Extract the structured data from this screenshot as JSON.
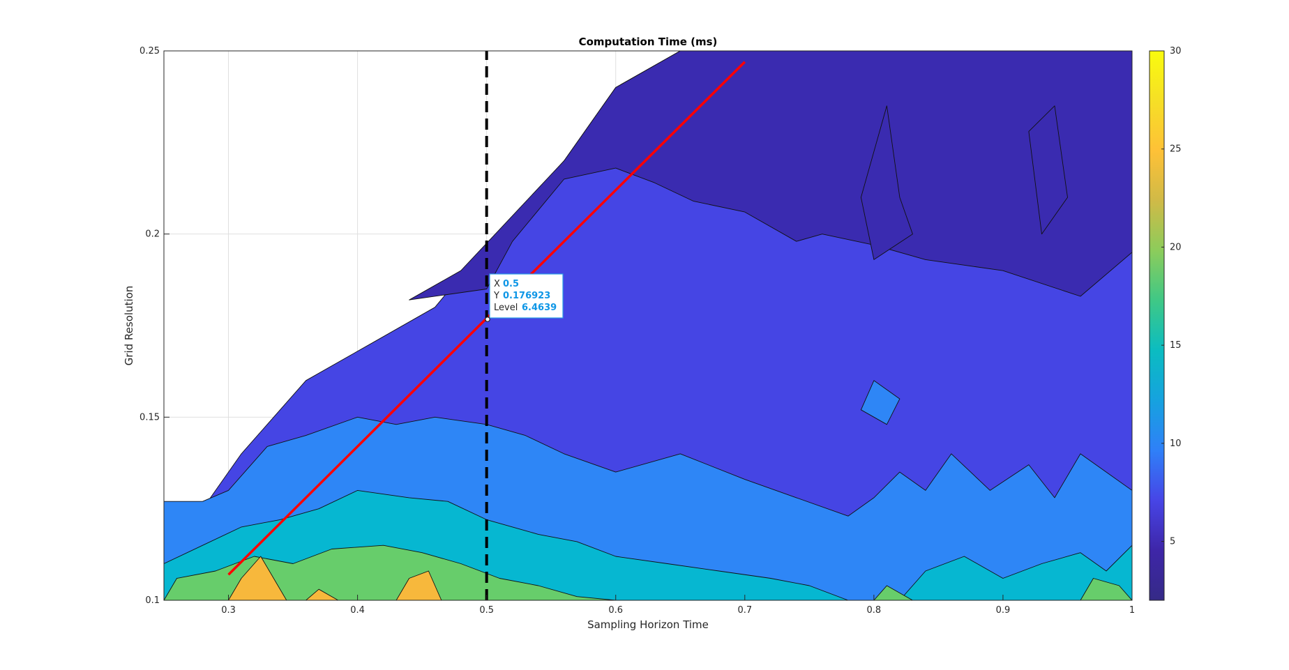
{
  "chart_data": {
    "type": "heatmap",
    "subtype": "filled-contour",
    "title": "Computation Time (ms)",
    "xlabel": "Sampling Horizon Time",
    "ylabel": "Grid Resolution",
    "xlim": [
      0.25,
      1
    ],
    "ylim": [
      0.1,
      0.25
    ],
    "xticks": [
      0.3,
      0.4,
      0.5,
      0.6,
      0.7,
      0.8,
      0.9,
      1
    ],
    "xtick_labels": [
      "0.3",
      "0.4",
      "0.5",
      "0.6",
      "0.7",
      "0.8",
      "0.9",
      "1"
    ],
    "yticks": [
      0.1,
      0.15,
      0.2,
      0.25
    ],
    "ytick_labels": [
      "0.1",
      "0.15",
      "0.2",
      "0.25"
    ],
    "grid": true,
    "colormap": "parula",
    "colorbar": {
      "position": "right",
      "clim": [
        2,
        30
      ],
      "ticks": [
        5,
        10,
        15,
        20,
        25,
        30
      ],
      "tick_labels": [
        "5",
        "10",
        "15",
        "20",
        "25",
        "30"
      ],
      "stops": [
        "#352a87",
        "#3e26a8",
        "#4745e6",
        "#2f80f8",
        "#16a2df",
        "#0bbcc1",
        "#3fc886",
        "#8ccc5b",
        "#d0ba47",
        "#fec137",
        "#f6df26",
        "#f9fb0e"
      ]
    },
    "levels": [
      {
        "min": 2,
        "max": 5,
        "color": "#3a2bb0"
      },
      {
        "min": 5,
        "max": 8,
        "color": "#4545e4"
      },
      {
        "min": 8,
        "max": 11,
        "color": "#2e86f6"
      },
      {
        "min": 11,
        "max": 15,
        "color": "#06b7d1"
      },
      {
        "min": 15,
        "max": 20,
        "color": "#67cd6b"
      },
      {
        "min": 20,
        "max": 25,
        "color": "#f7b83c"
      }
    ],
    "regions": [
      {
        "level": 6.5,
        "points": [
          [
            0.28,
            0.1
          ],
          [
            0.28,
            0.125
          ],
          [
            0.31,
            0.14
          ],
          [
            0.36,
            0.16
          ],
          [
            0.41,
            0.17
          ],
          [
            0.46,
            0.18
          ],
          [
            0.5,
            0.197
          ],
          [
            0.53,
            0.208
          ],
          [
            0.56,
            0.22
          ],
          [
            0.6,
            0.24
          ],
          [
            0.65,
            0.25
          ],
          [
            1,
            0.25
          ],
          [
            1,
            0.1
          ]
        ]
      },
      {
        "level": 3.5,
        "points": [
          [
            0.44,
            0.182
          ],
          [
            0.5,
            0.185
          ],
          [
            0.52,
            0.198
          ],
          [
            0.56,
            0.215
          ],
          [
            0.6,
            0.218
          ],
          [
            0.63,
            0.214
          ],
          [
            0.66,
            0.209
          ],
          [
            0.7,
            0.206
          ],
          [
            0.74,
            0.198
          ],
          [
            0.76,
            0.2
          ],
          [
            0.8,
            0.197
          ],
          [
            0.84,
            0.193
          ],
          [
            0.9,
            0.19
          ],
          [
            0.96,
            0.183
          ],
          [
            1,
            0.195
          ],
          [
            1,
            0.25
          ],
          [
            0.65,
            0.25
          ],
          [
            0.6,
            0.24
          ],
          [
            0.56,
            0.22
          ],
          [
            0.52,
            0.205
          ],
          [
            0.48,
            0.19
          ]
        ]
      },
      {
        "level": 3.5,
        "points": [
          [
            0.81,
            0.235
          ],
          [
            0.82,
            0.21
          ],
          [
            0.83,
            0.2
          ],
          [
            0.8,
            0.193
          ],
          [
            0.79,
            0.21
          ]
        ]
      },
      {
        "level": 3.5,
        "points": [
          [
            0.92,
            0.228
          ],
          [
            0.93,
            0.2
          ],
          [
            0.95,
            0.21
          ],
          [
            0.94,
            0.235
          ]
        ]
      },
      {
        "level": 9.5,
        "points": [
          [
            0.25,
            0.1
          ],
          [
            0.25,
            0.127
          ],
          [
            0.28,
            0.127
          ],
          [
            0.3,
            0.13
          ],
          [
            0.33,
            0.142
          ],
          [
            0.36,
            0.145
          ],
          [
            0.4,
            0.15
          ],
          [
            0.43,
            0.148
          ],
          [
            0.46,
            0.15
          ],
          [
            0.5,
            0.148
          ],
          [
            0.53,
            0.145
          ],
          [
            0.56,
            0.14
          ],
          [
            0.6,
            0.135
          ],
          [
            0.65,
            0.14
          ],
          [
            0.7,
            0.133
          ],
          [
            0.74,
            0.128
          ],
          [
            0.78,
            0.123
          ],
          [
            0.8,
            0.128
          ],
          [
            0.82,
            0.135
          ],
          [
            0.84,
            0.13
          ],
          [
            0.86,
            0.14
          ],
          [
            0.89,
            0.13
          ],
          [
            0.92,
            0.137
          ],
          [
            0.94,
            0.128
          ],
          [
            0.96,
            0.14
          ],
          [
            0.98,
            0.135
          ],
          [
            1,
            0.13
          ],
          [
            1,
            0.1
          ]
        ]
      },
      {
        "level": 9.5,
        "points": [
          [
            0.8,
            0.16
          ],
          [
            0.82,
            0.155
          ],
          [
            0.81,
            0.148
          ],
          [
            0.79,
            0.152
          ]
        ]
      },
      {
        "level": 13,
        "points": [
          [
            0.25,
            0.1
          ],
          [
            0.25,
            0.11
          ],
          [
            0.28,
            0.115
          ],
          [
            0.31,
            0.12
          ],
          [
            0.34,
            0.122
          ],
          [
            0.37,
            0.125
          ],
          [
            0.4,
            0.13
          ],
          [
            0.44,
            0.128
          ],
          [
            0.47,
            0.127
          ],
          [
            0.5,
            0.122
          ],
          [
            0.54,
            0.118
          ],
          [
            0.57,
            0.116
          ],
          [
            0.6,
            0.112
          ],
          [
            0.64,
            0.11
          ],
          [
            0.68,
            0.108
          ],
          [
            0.72,
            0.106
          ],
          [
            0.75,
            0.104
          ],
          [
            0.78,
            0.1
          ]
        ]
      },
      {
        "level": 13,
        "points": [
          [
            0.82,
            0.1
          ],
          [
            0.84,
            0.108
          ],
          [
            0.87,
            0.112
          ],
          [
            0.9,
            0.106
          ],
          [
            0.93,
            0.11
          ],
          [
            0.96,
            0.113
          ],
          [
            0.98,
            0.108
          ],
          [
            1,
            0.115
          ],
          [
            1,
            0.1
          ]
        ]
      },
      {
        "level": 17.5,
        "points": [
          [
            0.25,
            0.1
          ],
          [
            0.26,
            0.106
          ],
          [
            0.29,
            0.108
          ],
          [
            0.32,
            0.112
          ],
          [
            0.35,
            0.11
          ],
          [
            0.38,
            0.114
          ],
          [
            0.42,
            0.115
          ],
          [
            0.45,
            0.113
          ],
          [
            0.48,
            0.11
          ],
          [
            0.51,
            0.106
          ],
          [
            0.54,
            0.104
          ],
          [
            0.57,
            0.101
          ],
          [
            0.6,
            0.1
          ]
        ]
      },
      {
        "level": 17.5,
        "points": [
          [
            0.8,
            0.1
          ],
          [
            0.81,
            0.104
          ],
          [
            0.83,
            0.1
          ]
        ]
      },
      {
        "level": 17.5,
        "points": [
          [
            0.96,
            0.1
          ],
          [
            0.97,
            0.106
          ],
          [
            0.99,
            0.104
          ],
          [
            1,
            0.1
          ]
        ]
      },
      {
        "level": 22.5,
        "points": [
          [
            0.3,
            0.1
          ],
          [
            0.31,
            0.106
          ],
          [
            0.325,
            0.112
          ],
          [
            0.335,
            0.106
          ],
          [
            0.345,
            0.1
          ]
        ]
      },
      {
        "level": 22.5,
        "points": [
          [
            0.43,
            0.1
          ],
          [
            0.44,
            0.106
          ],
          [
            0.455,
            0.108
          ],
          [
            0.465,
            0.1
          ]
        ]
      },
      {
        "level": 22.5,
        "points": [
          [
            0.36,
            0.1
          ],
          [
            0.37,
            0.103
          ],
          [
            0.385,
            0.1
          ]
        ]
      }
    ],
    "series": [
      {
        "name": "",
        "type": "line",
        "style": "solid",
        "color": "#ff0000",
        "x": [
          0.3,
          0.7
        ],
        "y": [
          0.107,
          0.247
        ]
      },
      {
        "name": "",
        "type": "line",
        "style": "dashed",
        "color": "#000000",
        "x": [
          0.5,
          0.5
        ],
        "y": [
          0.1,
          0.25
        ]
      }
    ],
    "datatip": {
      "x": 0.5,
      "y": 0.176923,
      "x_label": "X",
      "y_label": "Y",
      "level_label": "Level",
      "x_text": "0.5",
      "y_text": "0.176923",
      "level_text": "6.4639"
    }
  }
}
